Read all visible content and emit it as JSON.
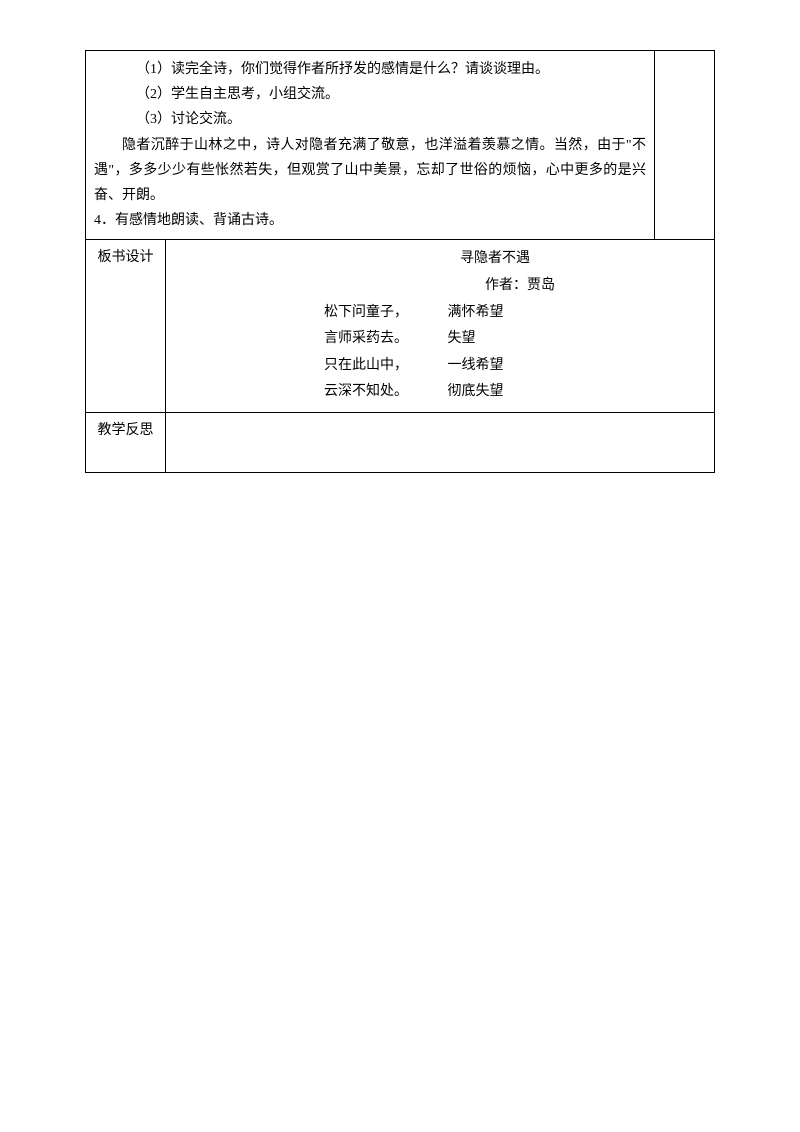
{
  "section1": {
    "q1": "（1）读完全诗，你们觉得作者所抒发的感情是什么？请谈谈理由。",
    "q2": "（2）学生自主思考，小组交流。",
    "q3": "（3）讨论交流。",
    "para": "隐者沉醉于山林之中，诗人对隐者充满了敬意，也洋溢着羡慕之情。当然，由于\"不遇\"，多多少少有些怅然若失，但观赏了山中美景，忘却了世俗的烦恼，心中更多的是兴奋、开朗。",
    "item4": "4．有感情地朗读、背诵古诗。"
  },
  "section2": {
    "label": "板书设计",
    "title": "寻隐者不遇",
    "author": "作者：贾岛",
    "lines": [
      {
        "left": "松下问童子，",
        "right": "满怀希望"
      },
      {
        "left": "言师采药去。",
        "right": "失望"
      },
      {
        "left": "只在此山中，",
        "right": "一线希望"
      },
      {
        "left": "云深不知处。",
        "right": "彻底失望"
      }
    ]
  },
  "section3": {
    "label": "教学反思"
  }
}
